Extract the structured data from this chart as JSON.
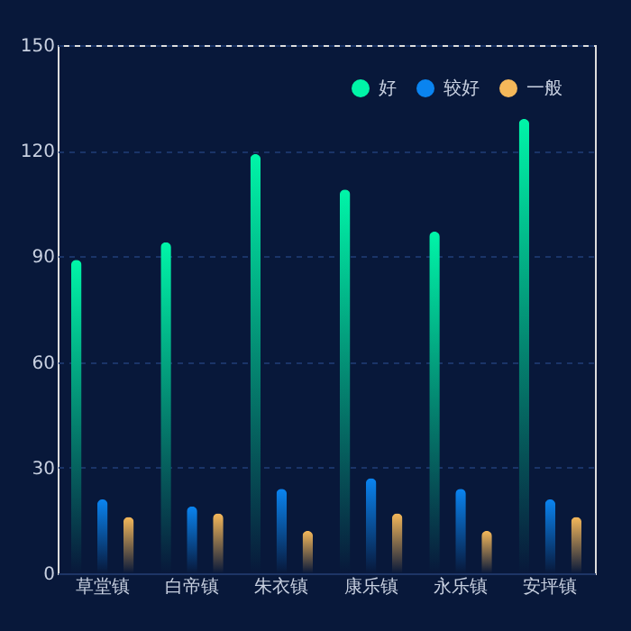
{
  "chart_data": {
    "type": "bar",
    "categories": [
      "草堂镇",
      "白帝镇",
      "朱衣镇",
      "康乐镇",
      "永乐镇",
      "安坪镇"
    ],
    "series": [
      {
        "name": "好",
        "color": "#00f5a8",
        "values": [
          89,
          94,
          119,
          109,
          97,
          129
        ]
      },
      {
        "name": "较好",
        "color": "#0a84f0",
        "values": [
          21,
          19,
          24,
          27,
          24,
          21
        ]
      },
      {
        "name": "一般",
        "color": "#f5b85a",
        "values": [
          16,
          17,
          12,
          17,
          12,
          16
        ]
      }
    ],
    "ylim": [
      0,
      150
    ],
    "yticks": [
      0,
      30,
      60,
      90,
      120,
      150
    ],
    "grid": "y",
    "legend": "top right"
  }
}
